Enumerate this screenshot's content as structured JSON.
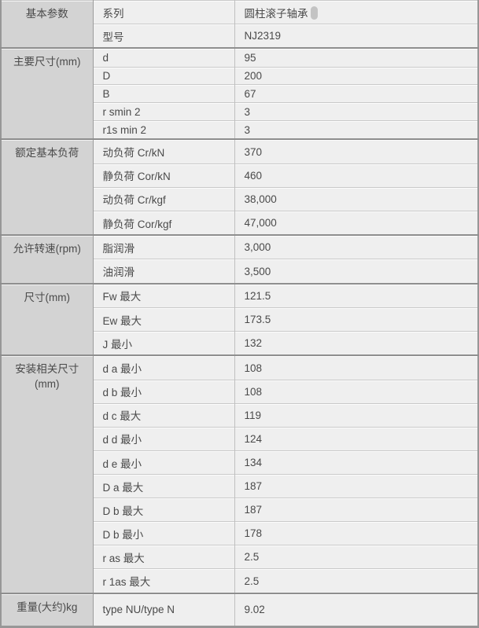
{
  "colors": {
    "category_bg": "#d3d3d3",
    "cell_bg": "#efefef",
    "outer_border": "#979797",
    "group_border": "#8e8e8e",
    "row_border": "#c9c9c9",
    "text": "#4a4a4a"
  },
  "table": {
    "groups": [
      {
        "category": "基本参数",
        "rows": [
          {
            "label": "系列",
            "value": "圆柱滚子轴承",
            "trailing_icon": "cursor-pill"
          },
          {
            "label": "型号",
            "value": "NJ2319"
          }
        ]
      },
      {
        "category": "主要尺寸(mm)",
        "rows": [
          {
            "label": "d",
            "value": "95"
          },
          {
            "label": "D",
            "value": "200"
          },
          {
            "label": "B",
            "value": "67"
          },
          {
            "label": "r smin 2",
            "value": "3"
          },
          {
            "label": "r1s min 2",
            "value": "3"
          }
        ]
      },
      {
        "category": "额定基本负荷",
        "rows": [
          {
            "label": "动负荷 Cr/kN",
            "value": "370"
          },
          {
            "label": "静负荷 Cor/kN",
            "value": "460"
          },
          {
            "label": "动负荷 Cr/kgf",
            "value": "38,000"
          },
          {
            "label": "静负荷 Cor/kgf",
            "value": "47,000"
          }
        ]
      },
      {
        "category": "允许转速(rpm)",
        "rows": [
          {
            "label": "脂润滑",
            "value": "3,000"
          },
          {
            "label": "油润滑",
            "value": "3,500"
          }
        ]
      },
      {
        "category": "尺寸(mm)",
        "rows": [
          {
            "label": "Fw 最大",
            "value": "121.5"
          },
          {
            "label": "Ew 最大",
            "value": "173.5"
          },
          {
            "label": "J 最小",
            "value": "132"
          }
        ]
      },
      {
        "category": "安装相关尺寸\n(mm)",
        "rows": [
          {
            "label": "d a 最小",
            "value": "108"
          },
          {
            "label": "d b 最小",
            "value": "108"
          },
          {
            "label": "d c 最大",
            "value": "119"
          },
          {
            "label": "d d 最小",
            "value": "124"
          },
          {
            "label": "d e 最小",
            "value": "134"
          },
          {
            "label": "D a 最大",
            "value": "187"
          },
          {
            "label": "D b 最大",
            "value": "187"
          },
          {
            "label": "D b 最小",
            "value": "178"
          },
          {
            "label": "r as 最大",
            "value": "2.5"
          },
          {
            "label": "r 1as 最大",
            "value": "2.5"
          }
        ]
      },
      {
        "category": "重量(大约)kg",
        "rows": [
          {
            "label": "type NU/type N",
            "value": "9.02"
          }
        ]
      }
    ]
  }
}
